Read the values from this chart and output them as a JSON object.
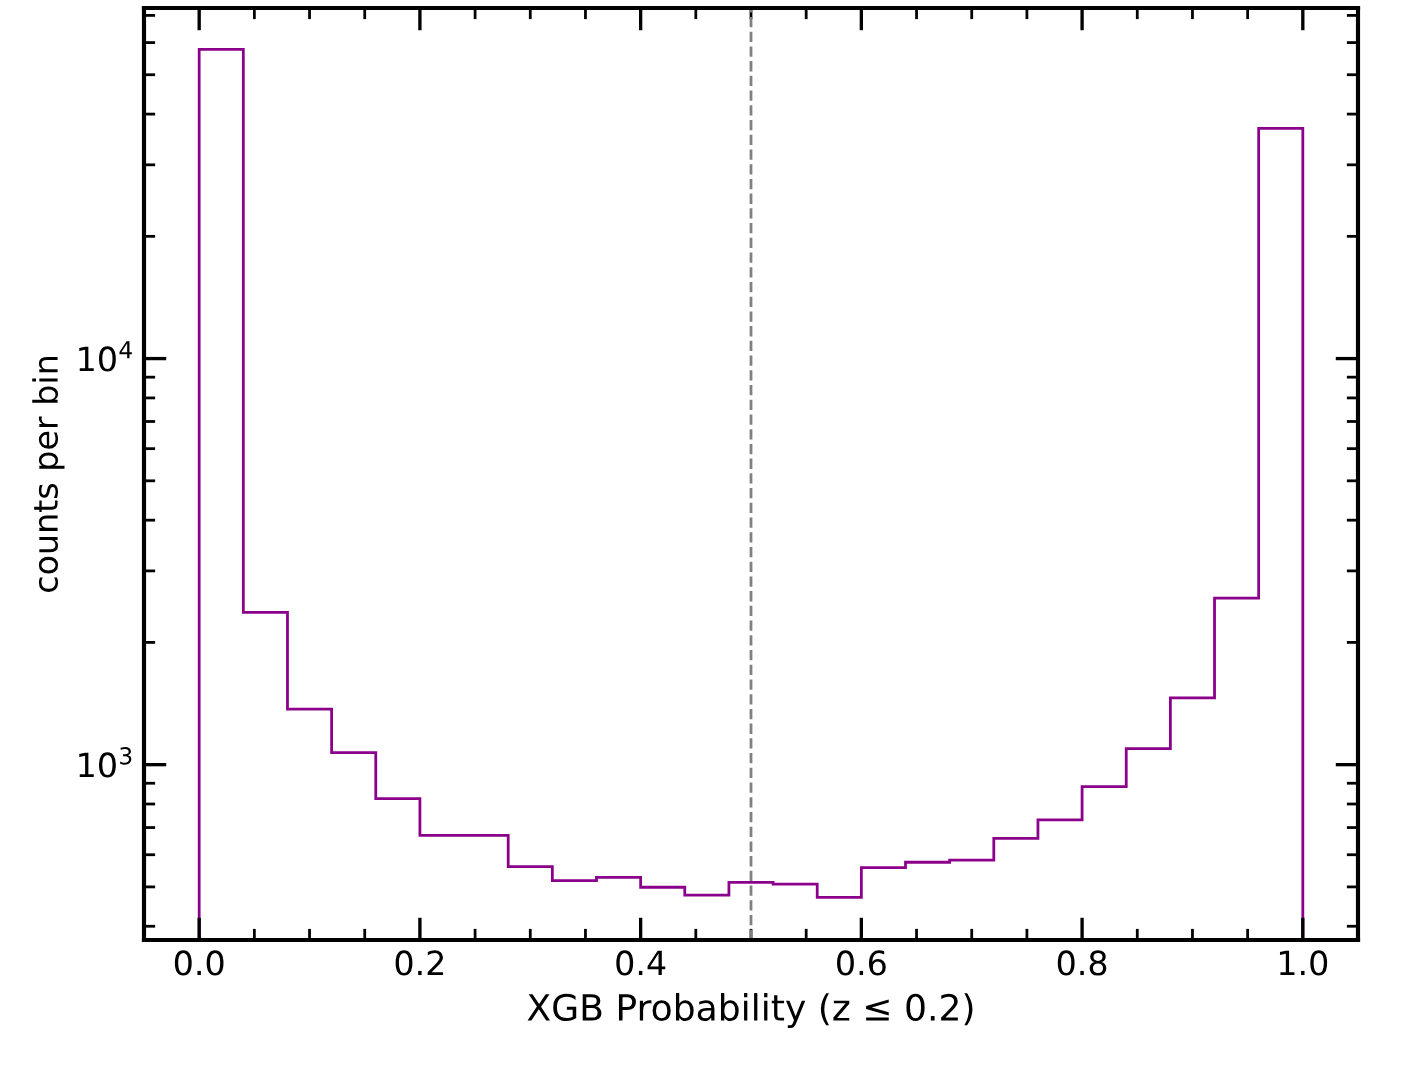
{
  "chart_data": {
    "type": "histogram",
    "xlabel": "XGB Probability (z ≤ 0.2)",
    "ylabel": "counts per bin",
    "bins": [
      0.0,
      0.04,
      0.08,
      0.12,
      0.16,
      0.2,
      0.24,
      0.28,
      0.32,
      0.36,
      0.4,
      0.44,
      0.48,
      0.52,
      0.56,
      0.6,
      0.64,
      0.68,
      0.72,
      0.76,
      0.8,
      0.84,
      0.88,
      0.92,
      0.96,
      1.0
    ],
    "values": [
      57700,
      2370,
      1370,
      1070,
      825,
      670,
      670,
      561,
      518,
      528,
      499,
      477,
      513,
      508,
      471,
      558,
      575,
      582,
      658,
      731,
      883,
      1095,
      1460,
      2570,
      36900
    ],
    "color": "#8b008b",
    "log": true,
    "xlim": [
      -0.05,
      1.05
    ],
    "ylim": [
      370,
      73000
    ],
    "xticks": [
      {
        "value": 0.0,
        "label": "0.0"
      },
      0.2,
      0.4,
      0.6,
      0.8,
      {
        "value": 1.0,
        "label": "1.0"
      }
    ],
    "yticks": [
      {
        "value": 1000,
        "label": "10$^{3}$"
      },
      {
        "value": 10000,
        "label": "10$^{4}$"
      }
    ],
    "ref_lines": [
      {
        "axis": "x",
        "value": 0.5,
        "color": "#808080",
        "line_style": "dashed"
      }
    ],
    "grid": false,
    "legend": false
  }
}
